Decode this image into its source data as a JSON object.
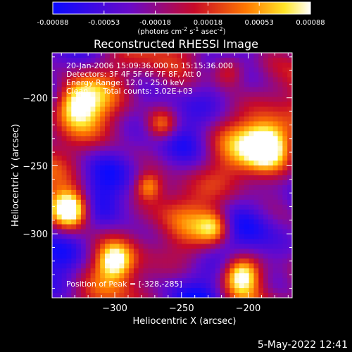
{
  "chart_data": {
    "type": "heatmap",
    "title": "Reconstructed RHESSI Image",
    "xlabel": "Heliocentric X (arcsec)",
    "ylabel": "Heliocentric Y (arcsec)",
    "xlim": [
      -347,
      -167
    ],
    "ylim": [
      -347,
      -167
    ],
    "x_ticks": [
      -300,
      -250,
      -200
    ],
    "y_ticks": [
      -200,
      -250,
      -300
    ],
    "colormap": "rhessi-blue-purple-red-yellow-white",
    "colorbar": {
      "range": [
        -0.00088,
        0.00088
      ],
      "tick_labels": [
        "-0.00088",
        "-0.00053",
        "-0.00018",
        "0.00018",
        "0.00053",
        "0.00088"
      ],
      "unit_parts": [
        "(photons cm",
        "-2",
        " s",
        "-1",
        " asec",
        "-2",
        ")"
      ]
    },
    "annotations": {
      "time_range": "20-Jan-2006 15:09:36.000 to 15:15:36.000",
      "detectors": "Detectors: 3F 4F 5F 6F 7F 8F, Att 0",
      "energy_range": "Energy Range: 12.0 - 25.0 keV",
      "algorithm": "Clean",
      "total_counts": "Total counts: 3.02E+03",
      "peak": "Position of Peak = [-328,-285]"
    },
    "peak_position": [
      -328,
      -285
    ]
  },
  "footer": {
    "timestamp": "5-May-2022 12:41"
  }
}
